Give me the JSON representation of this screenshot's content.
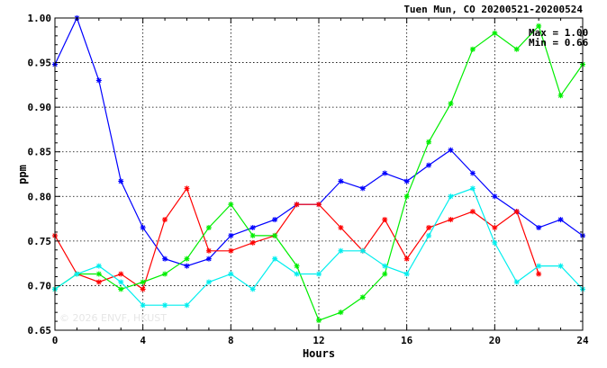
{
  "chart_data": {
    "type": "line",
    "title": "Tuen Mun, CO 20200521-20200524",
    "xlabel": "Hours",
    "ylabel": "ppm",
    "xlim": [
      0,
      24
    ],
    "ylim": [
      0.65,
      1.0
    ],
    "x_ticks": [
      0,
      4,
      8,
      12,
      16,
      20,
      24
    ],
    "y_ticks": [
      0.65,
      0.7,
      0.75,
      0.8,
      0.85,
      0.9,
      0.95,
      1.0
    ],
    "grid": true,
    "annotations": [
      "Max = 1.00",
      "Min = 0.66"
    ],
    "watermark": "© 2026 ENVF, HKUST",
    "series": [
      {
        "color": "#0000ff",
        "x": [
          0,
          1,
          2,
          3,
          4,
          5,
          6,
          7,
          8,
          9,
          10,
          11,
          12,
          13,
          14,
          15,
          16,
          17,
          18,
          19,
          20,
          21,
          22,
          23,
          24
        ],
        "values": [
          0.948,
          1.0,
          0.93,
          0.817,
          0.765,
          0.73,
          0.722,
          0.73,
          0.756,
          0.765,
          0.774,
          0.791,
          0.791,
          0.817,
          0.809,
          0.826,
          0.817,
          0.835,
          0.852,
          0.826,
          0.8,
          0.783,
          0.765,
          0.774,
          0.756
        ]
      },
      {
        "color": "#ff0000",
        "x": [
          0,
          1,
          2,
          3,
          4,
          5,
          6,
          7,
          8,
          9,
          10,
          11,
          12,
          13,
          14,
          15,
          16,
          17,
          18,
          19,
          20,
          21,
          22
        ],
        "values": [
          0.756,
          0.713,
          0.704,
          0.713,
          0.696,
          0.774,
          0.809,
          0.739,
          0.739,
          0.748,
          0.756,
          0.791,
          0.791,
          0.765,
          0.739,
          0.774,
          0.73,
          0.765,
          0.774,
          0.783,
          0.765,
          0.783,
          0.713
        ]
      },
      {
        "color": "#00ee00",
        "x": [
          0,
          1,
          2,
          3,
          4,
          5,
          6,
          7,
          8,
          9,
          10,
          11,
          12,
          13,
          14,
          15,
          16,
          17,
          18,
          19,
          20,
          21,
          22,
          23,
          24
        ],
        "values": [
          0.696,
          0.713,
          0.713,
          0.696,
          0.704,
          0.713,
          0.73,
          0.765,
          0.791,
          0.756,
          0.756,
          0.722,
          0.661,
          0.67,
          0.687,
          0.713,
          0.8,
          0.861,
          0.904,
          0.965,
          0.983,
          0.965,
          0.991,
          0.913,
          0.948
        ]
      },
      {
        "color": "#00eeee",
        "x": [
          0,
          1,
          2,
          3,
          4,
          5,
          6,
          7,
          8,
          9,
          10,
          11,
          12,
          13,
          14,
          15,
          16,
          17,
          18,
          19,
          20,
          21,
          22,
          23,
          24
        ],
        "values": [
          0.696,
          0.713,
          0.722,
          0.704,
          0.678,
          0.678,
          0.678,
          0.704,
          0.713,
          0.696,
          0.73,
          0.713,
          0.713,
          0.739,
          0.739,
          0.722,
          0.713,
          0.756,
          0.8,
          0.809,
          0.748,
          0.704,
          0.722,
          0.722,
          0.696
        ]
      }
    ]
  }
}
